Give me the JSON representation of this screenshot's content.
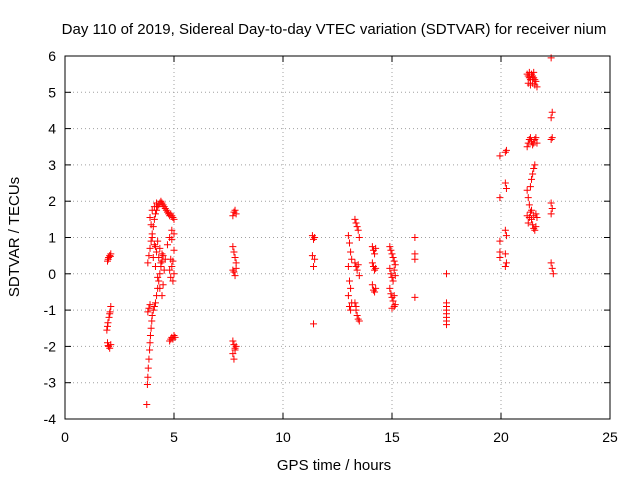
{
  "chart_data": {
    "type": "scatter",
    "title": "Day 110 of 2019, Sidereal Day-to-day VTEC variation (SDTVAR) for receiver nium",
    "xlabel": "GPS time / hours",
    "ylabel": "SDTVAR / TECUs",
    "xlim": [
      0,
      25
    ],
    "ylim": [
      -4,
      6
    ],
    "xticks": [
      "0",
      "5",
      "10",
      "15",
      "20",
      "25"
    ],
    "yticks": [
      "-4",
      "-3",
      "-2",
      "-1",
      "0",
      "1",
      "2",
      "3",
      "4",
      "5",
      "6"
    ],
    "grid": true,
    "marker": "+",
    "color": "#ff0000",
    "series": [
      {
        "name": "SDTVAR",
        "points": [
          [
            1.95,
            0.35
          ],
          [
            2.0,
            0.45
          ],
          [
            2.05,
            0.5
          ],
          [
            2.1,
            0.55
          ],
          [
            1.98,
            0.4
          ],
          [
            2.08,
            0.48
          ],
          [
            1.92,
            -1.55
          ],
          [
            1.97,
            -1.35
          ],
          [
            2.02,
            -1.2
          ],
          [
            2.07,
            -1.05
          ],
          [
            2.1,
            -0.9
          ],
          [
            1.95,
            -1.45
          ],
          [
            2.05,
            -1.1
          ],
          [
            1.95,
            -1.9
          ],
          [
            2.0,
            -2.0
          ],
          [
            2.05,
            -2.05
          ],
          [
            2.1,
            -1.95
          ],
          [
            1.98,
            -1.98
          ],
          [
            3.75,
            -3.6
          ],
          [
            3.78,
            -3.05
          ],
          [
            3.8,
            -2.85
          ],
          [
            3.82,
            -2.6
          ],
          [
            3.85,
            -2.35
          ],
          [
            3.88,
            -2.1
          ],
          [
            3.9,
            -1.9
          ],
          [
            3.92,
            -1.7
          ],
          [
            3.95,
            -1.5
          ],
          [
            3.98,
            -1.3
          ],
          [
            4.0,
            -1.15
          ],
          [
            3.8,
            -1.05
          ],
          [
            3.85,
            -0.95
          ],
          [
            3.9,
            -0.85
          ],
          [
            4.05,
            -1.0
          ],
          [
            4.1,
            -0.9
          ],
          [
            4.15,
            -0.8
          ],
          [
            4.2,
            -0.6
          ],
          [
            4.25,
            -0.4
          ],
          [
            4.3,
            -0.2
          ],
          [
            4.35,
            0.0
          ],
          [
            4.4,
            0.2
          ],
          [
            4.45,
            0.35
          ],
          [
            4.5,
            0.5
          ],
          [
            3.8,
            0.3
          ],
          [
            3.85,
            0.5
          ],
          [
            3.9,
            0.7
          ],
          [
            3.95,
            0.9
          ],
          [
            4.0,
            1.1
          ],
          [
            4.05,
            1.3
          ],
          [
            4.1,
            1.5
          ],
          [
            4.15,
            1.65
          ],
          [
            4.2,
            1.75
          ],
          [
            4.25,
            1.85
          ],
          [
            4.3,
            1.9
          ],
          [
            4.35,
            1.95
          ],
          [
            4.4,
            2.0
          ],
          [
            4.45,
            1.95
          ],
          [
            4.5,
            1.9
          ],
          [
            4.55,
            1.85
          ],
          [
            4.6,
            1.8
          ],
          [
            4.65,
            1.75
          ],
          [
            4.7,
            1.7
          ],
          [
            4.75,
            1.65
          ],
          [
            4.8,
            1.6
          ],
          [
            4.85,
            1.65
          ],
          [
            4.9,
            1.6
          ],
          [
            4.95,
            1.55
          ],
          [
            5.0,
            1.5
          ],
          [
            4.0,
            1.75
          ],
          [
            4.1,
            1.85
          ],
          [
            4.2,
            1.95
          ],
          [
            3.9,
            1.55
          ],
          [
            3.95,
            1.35
          ],
          [
            4.0,
            1.0
          ],
          [
            4.1,
            0.8
          ],
          [
            4.2,
            0.6
          ],
          [
            4.3,
            0.45
          ],
          [
            4.4,
            0.3
          ],
          [
            4.15,
            0.75
          ],
          [
            4.25,
            0.9
          ],
          [
            4.35,
            0.7
          ],
          [
            4.45,
            0.55
          ],
          [
            4.05,
            0.45
          ],
          [
            4.15,
            0.2
          ],
          [
            4.25,
            -0.1
          ],
          [
            4.35,
            -0.4
          ],
          [
            4.45,
            -0.6
          ],
          [
            4.5,
            -0.3
          ],
          [
            4.55,
            0.1
          ],
          [
            4.6,
            0.4
          ],
          [
            4.7,
            0.8
          ],
          [
            4.8,
            1.0
          ],
          [
            4.9,
            1.2
          ],
          [
            5.0,
            1.1
          ],
          [
            4.9,
            0.95
          ],
          [
            4.8,
            0.1
          ],
          [
            4.85,
            -0.1
          ],
          [
            4.9,
            0.2
          ],
          [
            4.95,
            0.35
          ],
          [
            5.0,
            0.0
          ],
          [
            4.85,
            0.4
          ],
          [
            4.95,
            -0.2
          ],
          [
            5.0,
            0.65
          ],
          [
            4.8,
            -1.85
          ],
          [
            4.85,
            -1.8
          ],
          [
            4.9,
            -1.75
          ],
          [
            4.95,
            -1.8
          ],
          [
            5.0,
            -1.7
          ],
          [
            5.05,
            -1.75
          ],
          [
            7.7,
            1.6
          ],
          [
            7.75,
            1.7
          ],
          [
            7.8,
            1.75
          ],
          [
            7.85,
            1.65
          ],
          [
            7.7,
            0.75
          ],
          [
            7.75,
            0.6
          ],
          [
            7.8,
            0.45
          ],
          [
            7.85,
            0.3
          ],
          [
            7.7,
            0.1
          ],
          [
            7.75,
            0.05
          ],
          [
            7.8,
            -0.05
          ],
          [
            7.85,
            0.15
          ],
          [
            7.7,
            -1.85
          ],
          [
            7.75,
            -1.95
          ],
          [
            7.8,
            -2.05
          ],
          [
            7.7,
            -2.2
          ],
          [
            7.75,
            -2.35
          ],
          [
            7.8,
            -2.1
          ],
          [
            7.85,
            -2.0
          ],
          [
            11.35,
            1.05
          ],
          [
            11.4,
            0.95
          ],
          [
            11.45,
            1.0
          ],
          [
            11.35,
            0.5
          ],
          [
            11.4,
            0.2
          ],
          [
            11.45,
            0.4
          ],
          [
            11.4,
            -1.38
          ],
          [
            13.0,
            1.05
          ],
          [
            13.05,
            0.85
          ],
          [
            13.1,
            0.6
          ],
          [
            13.15,
            0.4
          ],
          [
            13.0,
            0.2
          ],
          [
            13.05,
            -0.2
          ],
          [
            13.1,
            -0.4
          ],
          [
            13.0,
            -0.6
          ],
          [
            13.05,
            -0.9
          ],
          [
            13.1,
            -1.0
          ],
          [
            13.15,
            -0.8
          ],
          [
            13.3,
            1.5
          ],
          [
            13.35,
            1.4
          ],
          [
            13.4,
            1.3
          ],
          [
            13.45,
            1.2
          ],
          [
            13.5,
            1.0
          ],
          [
            13.3,
            0.3
          ],
          [
            13.35,
            0.2
          ],
          [
            13.4,
            0.1
          ],
          [
            13.45,
            0.25
          ],
          [
            13.5,
            -0.05
          ],
          [
            13.3,
            -0.8
          ],
          [
            13.35,
            -1.0
          ],
          [
            13.4,
            -1.15
          ],
          [
            13.45,
            -1.25
          ],
          [
            13.5,
            -1.3
          ],
          [
            13.35,
            -0.9
          ],
          [
            14.1,
            0.75
          ],
          [
            14.15,
            0.65
          ],
          [
            14.2,
            0.55
          ],
          [
            14.25,
            0.7
          ],
          [
            14.1,
            0.3
          ],
          [
            14.15,
            0.2
          ],
          [
            14.2,
            0.1
          ],
          [
            14.25,
            0.15
          ],
          [
            14.1,
            -0.3
          ],
          [
            14.15,
            -0.45
          ],
          [
            14.2,
            -0.5
          ],
          [
            14.25,
            -0.4
          ],
          [
            14.9,
            0.75
          ],
          [
            14.95,
            0.65
          ],
          [
            15.0,
            0.55
          ],
          [
            15.05,
            0.45
          ],
          [
            15.1,
            0.35
          ],
          [
            15.15,
            0.25
          ],
          [
            14.9,
            0.15
          ],
          [
            14.95,
            0.0
          ],
          [
            15.0,
            -0.1
          ],
          [
            15.05,
            -0.2
          ],
          [
            15.1,
            0.1
          ],
          [
            15.15,
            -0.05
          ],
          [
            14.9,
            -0.4
          ],
          [
            14.95,
            -0.55
          ],
          [
            15.0,
            -0.65
          ],
          [
            15.05,
            -0.75
          ],
          [
            15.1,
            -0.9
          ],
          [
            15.15,
            -0.85
          ],
          [
            15.0,
            -0.95
          ],
          [
            15.1,
            -0.6
          ],
          [
            16.05,
            1.0
          ],
          [
            16.05,
            0.55
          ],
          [
            16.05,
            0.4
          ],
          [
            16.05,
            -0.65
          ],
          [
            17.5,
            0.0
          ],
          [
            17.5,
            -0.8
          ],
          [
            17.5,
            -0.9
          ],
          [
            17.5,
            -1.0
          ],
          [
            17.5,
            -1.1
          ],
          [
            17.5,
            -1.2
          ],
          [
            17.5,
            -1.3
          ],
          [
            17.5,
            -1.4
          ],
          [
            19.95,
            3.25
          ],
          [
            19.95,
            2.1
          ],
          [
            19.95,
            0.9
          ],
          [
            19.95,
            0.6
          ],
          [
            19.95,
            0.45
          ],
          [
            20.2,
            3.35
          ],
          [
            20.25,
            3.4
          ],
          [
            20.2,
            2.5
          ],
          [
            20.25,
            2.35
          ],
          [
            20.2,
            1.2
          ],
          [
            20.25,
            1.05
          ],
          [
            20.2,
            0.55
          ],
          [
            20.25,
            0.3
          ],
          [
            20.2,
            0.2
          ],
          [
            21.2,
            5.5
          ],
          [
            21.25,
            5.45
          ],
          [
            21.3,
            5.4
          ],
          [
            21.35,
            5.35
          ],
          [
            21.4,
            5.5
          ],
          [
            21.45,
            5.45
          ],
          [
            21.5,
            5.4
          ],
          [
            21.55,
            5.35
          ],
          [
            21.6,
            5.3
          ],
          [
            21.25,
            5.25
          ],
          [
            21.35,
            5.2
          ],
          [
            21.45,
            5.25
          ],
          [
            21.55,
            5.2
          ],
          [
            21.65,
            5.15
          ],
          [
            21.3,
            5.55
          ],
          [
            21.5,
            5.55
          ],
          [
            21.2,
            3.5
          ],
          [
            21.25,
            3.6
          ],
          [
            21.3,
            3.7
          ],
          [
            21.35,
            3.75
          ],
          [
            21.4,
            3.65
          ],
          [
            21.45,
            3.55
          ],
          [
            21.5,
            3.6
          ],
          [
            21.55,
            3.7
          ],
          [
            21.6,
            3.75
          ],
          [
            21.65,
            3.6
          ],
          [
            21.2,
            2.3
          ],
          [
            21.25,
            2.1
          ],
          [
            21.3,
            1.9
          ],
          [
            21.35,
            1.7
          ],
          [
            21.4,
            1.5
          ],
          [
            21.45,
            1.35
          ],
          [
            21.5,
            1.25
          ],
          [
            21.55,
            1.2
          ],
          [
            21.6,
            1.3
          ],
          [
            21.65,
            1.55
          ],
          [
            21.2,
            1.6
          ],
          [
            21.25,
            1.4
          ],
          [
            21.3,
            1.55
          ],
          [
            21.35,
            2.4
          ],
          [
            21.4,
            2.6
          ],
          [
            21.45,
            2.75
          ],
          [
            21.5,
            2.9
          ],
          [
            21.55,
            3.0
          ],
          [
            21.6,
            1.65
          ],
          [
            21.5,
            1.6
          ],
          [
            21.4,
            1.75
          ],
          [
            22.3,
            5.95
          ],
          [
            22.35,
            4.45
          ],
          [
            22.3,
            4.3
          ],
          [
            22.35,
            3.75
          ],
          [
            22.3,
            3.7
          ],
          [
            22.3,
            1.95
          ],
          [
            22.35,
            1.8
          ],
          [
            22.3,
            1.65
          ],
          [
            22.3,
            0.3
          ],
          [
            22.35,
            0.15
          ],
          [
            22.4,
            0.0
          ]
        ]
      }
    ]
  }
}
